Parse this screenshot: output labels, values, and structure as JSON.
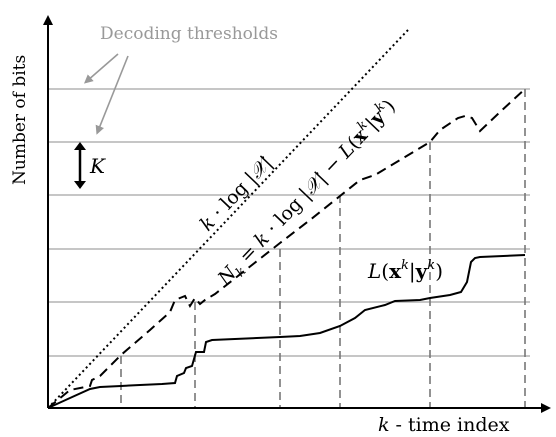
{
  "chart_data": {
    "type": "line",
    "ylabel": "Number of bits",
    "xlabel_var": "k",
    "xlabel_rest": " - time index",
    "annotation_thresholds": "Decoding thresholds",
    "annotation_K": "K",
    "labels": {
      "upper_line": {
        "k": "k",
        "mid": " · log |",
        "cal": "𝒳",
        "end": "|"
      },
      "dashed_line": {
        "n": "N",
        "k_sub": "k",
        "eq": " = ",
        "k": "k",
        "mid": " · log |",
        "cal": "𝒳",
        "minus": "| − ",
        "L": "L",
        "open": "(",
        "x": "x",
        "sup1": "k",
        "bar": "|",
        "y": "y",
        "sup2": "k",
        "close": ")"
      },
      "solid_line": {
        "L": "L",
        "open": "(",
        "x": "x",
        "sup1": "k",
        "bar": "|",
        "y": "y",
        "sup2": "k",
        "close": ")"
      }
    },
    "colors": {
      "grid": "#b3b3b3",
      "annotation": "#999999",
      "lines": "#000000"
    }
  }
}
